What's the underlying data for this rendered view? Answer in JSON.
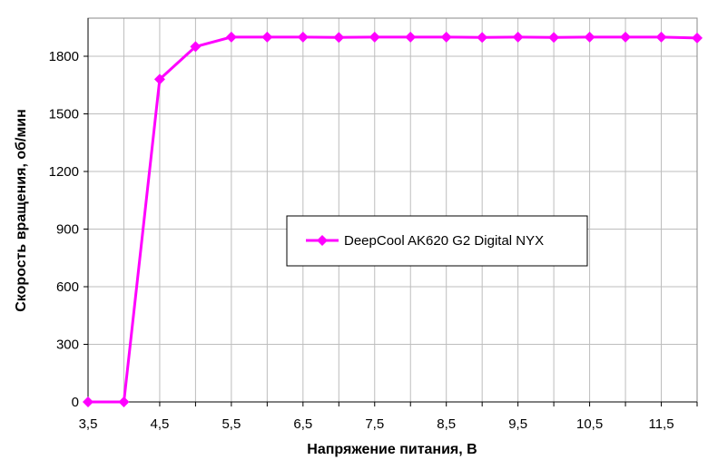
{
  "chart_data": {
    "type": "line",
    "xlabel": "Напряжение питания, В",
    "ylabel": "Скорость вращения, об/мин",
    "xlim": [
      3.5,
      12
    ],
    "ylim": [
      0,
      1900
    ],
    "x_ticks": [
      "3,5",
      "4,5",
      "5,5",
      "6,5",
      "7,5",
      "8,5",
      "9,5",
      "10,5",
      "11,5"
    ],
    "x_tick_values": [
      3.5,
      4.5,
      5.5,
      6.5,
      7.5,
      8.5,
      9.5,
      10.5,
      11.5
    ],
    "y_ticks": [
      "0",
      "300",
      "600",
      "900",
      "1200",
      "1500",
      "1800"
    ],
    "y_tick_values": [
      0,
      300,
      600,
      900,
      1200,
      1500,
      1800
    ],
    "x_gridlines": [
      3.5,
      4,
      4.5,
      5,
      5.5,
      6,
      6.5,
      7,
      7.5,
      8,
      8.5,
      9,
      9.5,
      10,
      10.5,
      11,
      11.5,
      12
    ],
    "grid": true,
    "legend_position": "center-right",
    "series": [
      {
        "name": "DeepCool AK620 G2 Digital NYX",
        "color": "#ff00ff",
        "marker": "diamond",
        "x": [
          3.5,
          4.0,
          4.5,
          5.0,
          5.5,
          6.0,
          6.5,
          7.0,
          7.5,
          8.0,
          8.5,
          9.0,
          9.5,
          10.0,
          10.5,
          11.0,
          11.5,
          12.0
        ],
        "y": [
          0,
          0,
          1680,
          1850,
          1900,
          1900,
          1900,
          1898,
          1900,
          1900,
          1900,
          1898,
          1900,
          1898,
          1900,
          1900,
          1900,
          1895
        ]
      }
    ]
  }
}
